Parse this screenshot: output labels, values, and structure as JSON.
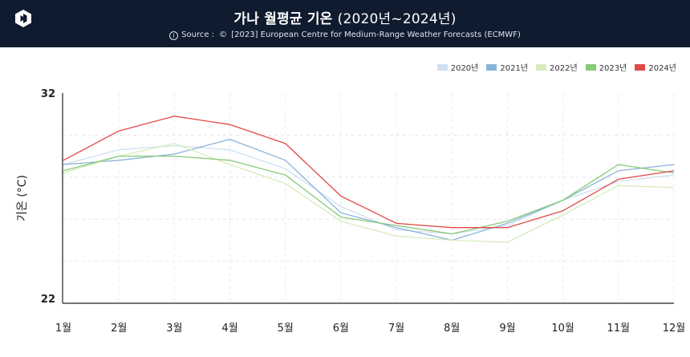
{
  "header": {
    "title_main": "가나 월평균 기온",
    "title_period": "(2020년~2024년)",
    "source_prefix": "Source :",
    "source_text": "[2023] European Centre for Medium-Range Weather Forecasts (ECMWF)",
    "logo_icon": "app-logo-icon",
    "info_icon": "info-icon",
    "copyright_icon": "copyright-icon",
    "background": "#0f1b2e"
  },
  "chart_data": {
    "type": "line",
    "ylabel": "기온 (°C)",
    "xlabel": "",
    "ylim": [
      22,
      32
    ],
    "yticks": [
      "32",
      "22"
    ],
    "grid": true,
    "legend_position": "top-right",
    "categories": [
      "1월",
      "2월",
      "3월",
      "4월",
      "5월",
      "6월",
      "7월",
      "8월",
      "9월",
      "10월",
      "11월",
      "12월"
    ],
    "series": [
      {
        "name": "2020년",
        "color": "#cfe0ef",
        "values": [
          28.6,
          29.3,
          29.5,
          29.3,
          28.4,
          26.6,
          25.5,
          25.3,
          25.7,
          26.9,
          27.8,
          28.1
        ]
      },
      {
        "name": "2021년",
        "color": "#89b4d9",
        "values": [
          28.6,
          28.8,
          29.1,
          29.8,
          28.8,
          26.3,
          25.6,
          25.0,
          25.8,
          26.9,
          28.3,
          28.6
        ]
      },
      {
        "name": "2022년",
        "color": "#d6ecbb",
        "values": [
          28.2,
          29.0,
          29.6,
          28.6,
          27.7,
          25.9,
          25.2,
          25.0,
          24.9,
          26.2,
          27.6,
          27.5
        ]
      },
      {
        "name": "2023년",
        "color": "#86c978",
        "values": [
          28.3,
          29.0,
          29.0,
          28.8,
          28.1,
          26.1,
          25.7,
          25.3,
          25.9,
          26.9,
          28.6,
          28.2
        ]
      },
      {
        "name": "2024년",
        "color": "#e04a48",
        "values": [
          28.8,
          30.2,
          30.9,
          30.5,
          29.6,
          27.1,
          25.8,
          25.6,
          25.6,
          26.4,
          27.9,
          28.3
        ]
      }
    ]
  }
}
